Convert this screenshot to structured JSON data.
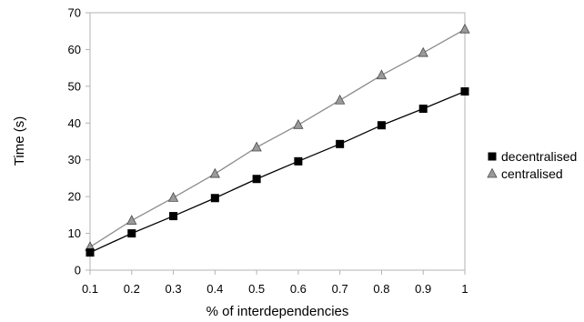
{
  "chart_data": {
    "type": "line",
    "x": [
      0.1,
      0.2,
      0.3,
      0.4,
      0.5,
      0.6,
      0.7,
      0.8,
      0.9,
      1
    ],
    "x_tick_labels": [
      "0.1",
      "0.2",
      "0.3",
      "0.4",
      "0.5",
      "0.6",
      "0.7",
      "0.8",
      "0.9",
      "1"
    ],
    "y_tick_labels": [
      "0",
      "10",
      "20",
      "30",
      "40",
      "50",
      "60",
      "70"
    ],
    "xlabel": "% of interdependencies",
    "ylabel": "Time (s)",
    "xlim": [
      0.1,
      1
    ],
    "ylim": [
      0,
      70
    ],
    "grid": false,
    "legend_position": "right",
    "series": [
      {
        "name": "decentralised",
        "marker": "square",
        "line_color": "#000000",
        "marker_color": "#000000",
        "values": [
          4.8,
          10.0,
          14.7,
          19.6,
          24.8,
          29.6,
          34.3,
          39.4,
          43.9,
          48.6
        ]
      },
      {
        "name": "centralised",
        "marker": "triangle",
        "line_color": "#8c8c8c",
        "marker_color": "#9a9a9a",
        "values": [
          6.3,
          13.5,
          19.7,
          26.2,
          33.4,
          39.5,
          46.2,
          53.0,
          59.1,
          65.5
        ]
      }
    ]
  }
}
